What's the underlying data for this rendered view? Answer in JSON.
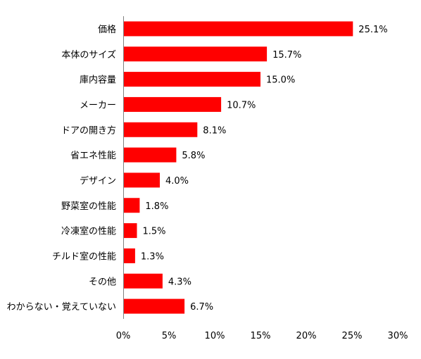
{
  "chart_data": {
    "type": "bar",
    "orientation": "horizontal",
    "categories": [
      "価格",
      "本体のサイズ",
      "庫内容量",
      "メーカー",
      "ドアの開き方",
      "省エネ性能",
      "デザイン",
      "野菜室の性能",
      "冷凍室の性能",
      "チルド室の性能",
      "その他",
      "わからない・覚えていない"
    ],
    "values": [
      25.1,
      15.7,
      15.0,
      10.7,
      8.1,
      5.8,
      4.0,
      1.8,
      1.5,
      1.3,
      4.3,
      6.7
    ],
    "value_labels": [
      "25.1%",
      "15.7%",
      "15.0%",
      "10.7%",
      "8.1%",
      "5.8%",
      "4.0%",
      "1.8%",
      "1.5%",
      "1.3%",
      "4.3%",
      "6.7%"
    ],
    "xlim": [
      0,
      30
    ],
    "xticks": [
      "0%",
      "5%",
      "10%",
      "15%",
      "20%",
      "25%",
      "30%"
    ],
    "bar_color": "#ff0000",
    "grid": false,
    "legend": false
  }
}
